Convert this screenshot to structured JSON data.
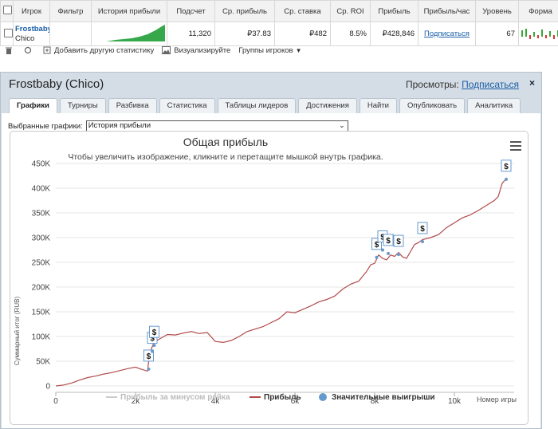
{
  "table": {
    "headers": [
      "Игрок",
      "Фильтр",
      "История прибыли",
      "Подсчет",
      "Ср. прибыль",
      "Ср. ставка",
      "Ср. ROI",
      "Прибыль",
      "Прибыль/час",
      "Уровень",
      "Форма"
    ],
    "row": {
      "player_name": "Frostbaby",
      "player_network": "Chico",
      "count": "11,320",
      "avg_profit": "₽37.83",
      "avg_stake": "₽482",
      "avg_roi": "8.5%",
      "profit": "₽428,846",
      "profit_per_hour": "Подписаться",
      "level": "67"
    }
  },
  "toolbar": {
    "add_stat": "Добавить другую статистику",
    "visualize": "Визуализируйте",
    "player_groups": "Группы игроков"
  },
  "panel": {
    "title": "Frostbaby (Chico)",
    "views_label": "Просмотры:",
    "views_link": "Подписаться",
    "close": "×",
    "tabs": [
      "Графики",
      "Турниры",
      "Разбивка",
      "Статистика",
      "Таблицы лидеров",
      "Достижения",
      "Найти",
      "Опубликовать",
      "Аналитика"
    ],
    "selected_charts_label": "Выбранные графики:",
    "selected_chart": "История прибыли"
  },
  "chart_data": {
    "type": "line",
    "title": "Общая прибыль",
    "subtitle": "Чтобы увеличить изображение, кликните и перетащите мышкой внутрь графика.",
    "xlabel": "Номер игры",
    "ylabel": "Суммарный итог (RUB)",
    "xlim": [
      0,
      11320
    ],
    "ylim": [
      0,
      450000
    ],
    "x_ticks": [
      "0",
      "2k",
      "4k",
      "6k",
      "8k",
      "10k"
    ],
    "y_ticks": [
      "0",
      "50K",
      "100K",
      "150K",
      "200K",
      "250K",
      "300K",
      "350K",
      "400K",
      "450K"
    ],
    "legend": [
      "Прибыль за минусом рейка",
      "Прибыль",
      "Значительные выигрыши"
    ],
    "legend_position": "bottom",
    "series": [
      {
        "name": "Прибыль",
        "color": "#b24a4a",
        "x": [
          0,
          200,
          400,
          600,
          800,
          1000,
          1200,
          1400,
          1600,
          1800,
          2000,
          2100,
          2300,
          2350,
          2400,
          2450,
          2500,
          2600,
          2800,
          3000,
          3200,
          3400,
          3600,
          3800,
          4000,
          4200,
          4400,
          4600,
          4800,
          5000,
          5200,
          5400,
          5600,
          5800,
          6000,
          6200,
          6400,
          6600,
          6800,
          7000,
          7200,
          7400,
          7600,
          7800,
          7900,
          8000,
          8100,
          8200,
          8300,
          8400,
          8500,
          8600,
          8700,
          8800,
          9000,
          9100,
          9200,
          9400,
          9600,
          9800,
          10000,
          10200,
          10400,
          10600,
          10800,
          11000,
          11100,
          11200,
          11320
        ],
        "y": [
          0,
          2000,
          6000,
          12000,
          17000,
          20000,
          24000,
          27000,
          31000,
          35000,
          38000,
          35000,
          30000,
          62000,
          75000,
          86000,
          90000,
          95000,
          104000,
          103000,
          107000,
          110000,
          106000,
          108000,
          90000,
          88000,
          92000,
          100000,
          110000,
          115000,
          120000,
          128000,
          136000,
          150000,
          148000,
          155000,
          162000,
          170000,
          175000,
          182000,
          196000,
          206000,
          212000,
          232000,
          245000,
          248000,
          265000,
          258000,
          255000,
          265000,
          262000,
          270000,
          261000,
          258000,
          286000,
          290000,
          296000,
          300000,
          306000,
          320000,
          330000,
          340000,
          346000,
          355000,
          365000,
          375000,
          383000,
          410000,
          421000
        ]
      },
      {
        "name": "Значительные выигрыши",
        "color": "#6699cc",
        "x": [
          2330,
          2420,
          2470,
          8050,
          8200,
          8340,
          8600,
          9200,
          11300
        ],
        "y": [
          34000,
          70000,
          82000,
          260000,
          275000,
          268000,
          266000,
          292000,
          418000
        ]
      }
    ]
  }
}
